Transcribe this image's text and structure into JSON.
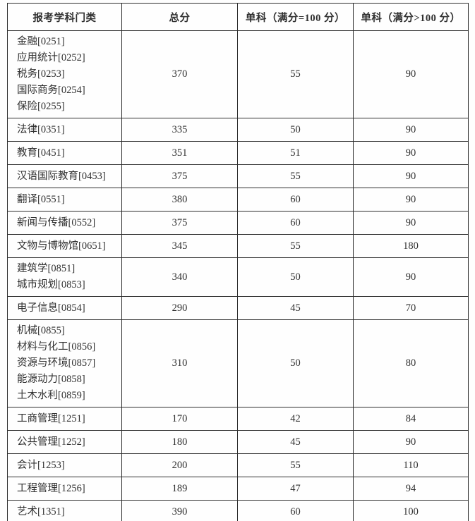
{
  "colors": {
    "background": "#fefefe",
    "border": "#2e2e2e",
    "text": "#303030"
  },
  "table": {
    "headers": [
      {
        "label": "报考学科门类"
      },
      {
        "label": "总分"
      },
      {
        "label": "单科（满分=100 分）"
      },
      {
        "label": "单科（满分>100 分）"
      }
    ],
    "rows": [
      {
        "categories": [
          "金融[0251]",
          "应用统计[0252]",
          "税务[0253]",
          "国际商务[0254]",
          "保险[0255]"
        ],
        "total": "370",
        "single_eq100": "55",
        "single_gt100": "90"
      },
      {
        "categories": [
          "法律[0351]"
        ],
        "total": "335",
        "single_eq100": "50",
        "single_gt100": "90"
      },
      {
        "categories": [
          "教育[0451]"
        ],
        "total": "351",
        "single_eq100": "51",
        "single_gt100": "90"
      },
      {
        "categories": [
          "汉语国际教育[0453]"
        ],
        "total": "375",
        "single_eq100": "55",
        "single_gt100": "90"
      },
      {
        "categories": [
          "翻译[0551]"
        ],
        "total": "380",
        "single_eq100": "60",
        "single_gt100": "90"
      },
      {
        "categories": [
          "新闻与传播[0552]"
        ],
        "total": "375",
        "single_eq100": "60",
        "single_gt100": "90"
      },
      {
        "categories": [
          "文物与博物馆[0651]"
        ],
        "total": "345",
        "single_eq100": "55",
        "single_gt100": "180"
      },
      {
        "categories": [
          "建筑学[0851]",
          "城市规划[0853]"
        ],
        "total": "340",
        "single_eq100": "50",
        "single_gt100": "90"
      },
      {
        "categories": [
          "电子信息[0854]"
        ],
        "total": "290",
        "single_eq100": "45",
        "single_gt100": "70"
      },
      {
        "categories": [
          "机械[0855]",
          "材料与化工[0856]",
          "资源与环境[0857]",
          "能源动力[0858]",
          "土木水利[0859]"
        ],
        "total": "310",
        "single_eq100": "50",
        "single_gt100": "80"
      },
      {
        "categories": [
          "工商管理[1251]"
        ],
        "total": "170",
        "single_eq100": "42",
        "single_gt100": "84"
      },
      {
        "categories": [
          "公共管理[1252]"
        ],
        "total": "180",
        "single_eq100": "45",
        "single_gt100": "90"
      },
      {
        "categories": [
          "会计[1253]"
        ],
        "total": "200",
        "single_eq100": "55",
        "single_gt100": "110"
      },
      {
        "categories": [
          "工程管理[1256]"
        ],
        "total": "189",
        "single_eq100": "47",
        "single_gt100": "94"
      },
      {
        "categories": [
          "艺术[1351]"
        ],
        "total": "390",
        "single_eq100": "60",
        "single_gt100": "100"
      }
    ]
  }
}
